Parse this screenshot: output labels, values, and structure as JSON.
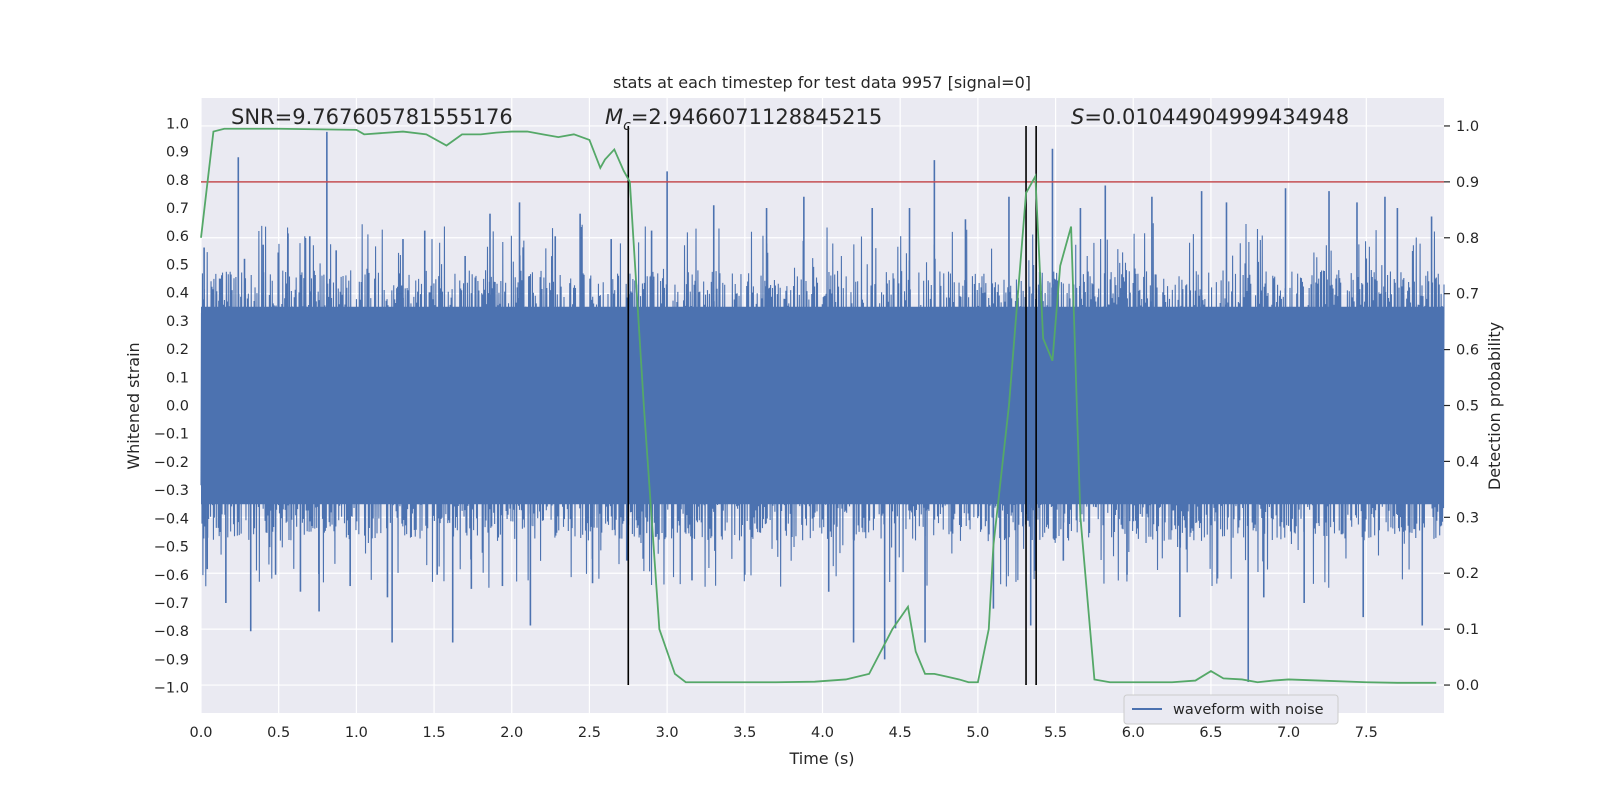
{
  "chart_data": {
    "type": "line",
    "title": "stats at each timestep for test data 9957 [signal=0]",
    "xlabel": "Time (s)",
    "ylabel_left": "Whitened strain",
    "ylabel_right": "Detection probability",
    "xlim": [
      0,
      8
    ],
    "ylim_left": [
      -1.09,
      1.09
    ],
    "ylim_right": [
      -0.05,
      1.05
    ],
    "grid": true,
    "x_ticks": [
      0.0,
      0.5,
      1.0,
      1.5,
      2.0,
      2.5,
      3.0,
      3.5,
      4.0,
      4.5,
      5.0,
      5.5,
      6.0,
      6.5,
      7.0,
      7.5
    ],
    "x_tick_labels": [
      "0.0",
      "0.5",
      "1.0",
      "1.5",
      "2.0",
      "2.5",
      "3.0",
      "3.5",
      "4.0",
      "4.5",
      "5.0",
      "5.5",
      "6.0",
      "6.5",
      "7.0",
      "7.5"
    ],
    "y_ticks_left": [
      1.0,
      0.9,
      0.8,
      0.7,
      0.6,
      0.5,
      0.4,
      0.3,
      0.2,
      0.1,
      0.0,
      -0.1,
      -0.2,
      -0.3,
      -0.4,
      -0.5,
      -0.6,
      -0.7,
      -0.8,
      -0.9,
      -1.0
    ],
    "y_tick_labels_left": [
      "1.0",
      "0.9",
      "0.8",
      "0.7",
      "0.6",
      "0.5",
      "0.4",
      "0.3",
      "0.2",
      "0.1",
      "0.0",
      "−0.1",
      "−0.2",
      "−0.3",
      "−0.4",
      "−0.5",
      "−0.6",
      "−0.7",
      "−0.8",
      "−0.9",
      "−1.0"
    ],
    "y_ticks_right": [
      1.0,
      0.9,
      0.8,
      0.7,
      0.6,
      0.5,
      0.4,
      0.3,
      0.2,
      0.1,
      0.0
    ],
    "y_tick_labels_right": [
      "1.0",
      "0.9",
      "0.8",
      "0.7",
      "0.6",
      "0.5",
      "0.4",
      "0.3",
      "0.2",
      "0.1",
      "0.0"
    ],
    "annotations": {
      "snr": "SNR=9.767605781555176",
      "mc_symbol": "M",
      "mc_sub": "c",
      "mc_value": "=2.9466071128845215",
      "s_symbol": "S",
      "s_value": "=0.01044904999434948"
    },
    "threshold": {
      "value": 0.9,
      "axis": "right",
      "color": "#c44e52"
    },
    "vertical_markers": [
      2.75,
      5.31,
      5.375
    ],
    "legend": {
      "label": "waveform with noise",
      "placement": "lower-right"
    },
    "series": [
      {
        "name": "waveform with noise",
        "axis": "left",
        "color": "#4c72b0",
        "kind": "dense-noise",
        "duration": 8.0,
        "baseline_range": [
          -0.4,
          0.4
        ],
        "peaks": [
          [
            0.02,
            0.56
          ],
          [
            0.04,
            -0.58
          ],
          [
            0.12,
            0.45
          ],
          [
            0.16,
            -0.7
          ],
          [
            0.24,
            0.88
          ],
          [
            0.28,
            0.52
          ],
          [
            0.32,
            -0.8
          ],
          [
            0.4,
            0.57
          ],
          [
            0.48,
            -0.6
          ],
          [
            0.56,
            0.61
          ],
          [
            0.64,
            -0.66
          ],
          [
            0.7,
            0.6
          ],
          [
            0.76,
            -0.73
          ],
          [
            0.81,
            0.97
          ],
          [
            0.87,
            0.55
          ],
          [
            0.96,
            -0.64
          ],
          [
            1.08,
            0.47
          ],
          [
            1.2,
            -0.68
          ],
          [
            1.23,
            -0.84
          ],
          [
            1.3,
            0.59
          ],
          [
            1.44,
            0.62
          ],
          [
            1.52,
            -0.6
          ],
          [
            1.62,
            -0.84
          ],
          [
            1.7,
            0.53
          ],
          [
            1.74,
            -0.65
          ],
          [
            1.86,
            0.68
          ],
          [
            1.94,
            -0.64
          ],
          [
            2.05,
            0.72
          ],
          [
            2.12,
            -0.78
          ],
          [
            2.28,
            0.6
          ],
          [
            2.44,
            0.68
          ],
          [
            2.52,
            -0.63
          ],
          [
            2.64,
            0.59
          ],
          [
            2.74,
            -0.55
          ],
          [
            2.9,
            0.62
          ],
          [
            3.0,
            0.83
          ],
          [
            3.16,
            -0.62
          ],
          [
            3.3,
            0.71
          ],
          [
            3.5,
            -0.6
          ],
          [
            3.64,
            0.7
          ],
          [
            3.88,
            0.74
          ],
          [
            4.04,
            -0.66
          ],
          [
            4.2,
            -0.84
          ],
          [
            4.32,
            0.7
          ],
          [
            4.4,
            -0.9
          ],
          [
            4.47,
            -0.79
          ],
          [
            4.56,
            0.7
          ],
          [
            4.66,
            -0.84
          ],
          [
            4.72,
            0.87
          ],
          [
            4.92,
            0.66
          ],
          [
            5.1,
            -0.72
          ],
          [
            5.2,
            0.74
          ],
          [
            5.34,
            -0.78
          ],
          [
            5.48,
            0.91
          ],
          [
            5.55,
            -0.55
          ],
          [
            5.66,
            0.7
          ],
          [
            5.82,
            0.78
          ],
          [
            5.96,
            -0.6
          ],
          [
            6.12,
            0.74
          ],
          [
            6.3,
            -0.75
          ],
          [
            6.44,
            0.76
          ],
          [
            6.6,
            0.72
          ],
          [
            6.74,
            -0.98
          ],
          [
            6.84,
            -0.68
          ],
          [
            6.98,
            0.77
          ],
          [
            7.1,
            -0.7
          ],
          [
            7.26,
            0.76
          ],
          [
            7.44,
            0.72
          ],
          [
            7.48,
            -0.75
          ],
          [
            7.62,
            0.74
          ],
          [
            7.7,
            0.7
          ],
          [
            7.86,
            -0.78
          ],
          [
            7.92,
            0.67
          ]
        ]
      },
      {
        "name": "detection probability",
        "axis": "right",
        "color": "#55a868",
        "kind": "line",
        "x": [
          0.0,
          0.08,
          0.15,
          0.5,
          1.0,
          1.05,
          1.3,
          1.45,
          1.58,
          1.68,
          1.8,
          1.9,
          2.0,
          2.1,
          2.2,
          2.3,
          2.4,
          2.5,
          2.57,
          2.6,
          2.66,
          2.72,
          2.76,
          2.85,
          2.95,
          3.05,
          3.12,
          3.3,
          3.5,
          3.7,
          3.95,
          4.15,
          4.3,
          4.45,
          4.55,
          4.6,
          4.66,
          4.72,
          4.8,
          4.88,
          4.94,
          5.0,
          5.07,
          5.1,
          5.2,
          5.31,
          5.37,
          5.42,
          5.48,
          5.53,
          5.6,
          5.66,
          5.75,
          5.85,
          6.0,
          6.25,
          6.4,
          6.5,
          6.58,
          6.7,
          6.8,
          6.9,
          7.0,
          7.2,
          7.5,
          7.7,
          7.95
        ],
        "y": [
          0.8,
          0.99,
          0.995,
          0.995,
          0.993,
          0.985,
          0.99,
          0.985,
          0.965,
          0.985,
          0.985,
          0.988,
          0.99,
          0.99,
          0.985,
          0.98,
          0.985,
          0.975,
          0.925,
          0.94,
          0.958,
          0.92,
          0.9,
          0.5,
          0.1,
          0.02,
          0.005,
          0.005,
          0.005,
          0.005,
          0.006,
          0.01,
          0.02,
          0.1,
          0.14,
          0.06,
          0.02,
          0.02,
          0.015,
          0.01,
          0.005,
          0.005,
          0.1,
          0.25,
          0.5,
          0.88,
          0.91,
          0.62,
          0.58,
          0.75,
          0.82,
          0.3,
          0.01,
          0.005,
          0.005,
          0.005,
          0.008,
          0.025,
          0.012,
          0.01,
          0.005,
          0.008,
          0.01,
          0.008,
          0.005,
          0.004,
          0.004
        ]
      }
    ]
  }
}
